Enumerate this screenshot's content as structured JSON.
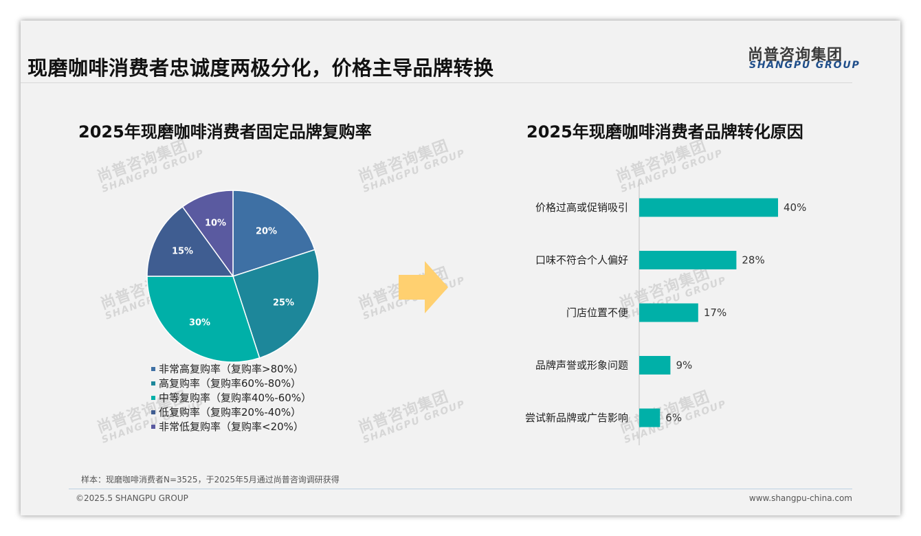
{
  "page": {
    "title": "现磨咖啡消费者忠诚度两极分化，价格主导品牌转换",
    "logo_cn": "尚普咨询集团",
    "logo_en": "SHANGPU GROUP",
    "watermark_cn": "尚普咨询集团",
    "watermark_en": "SHANGPU GROUP",
    "note": "样本：现磨咖啡消费者N=3525，于2025年5月通过尚普咨询调研获得",
    "copyright": "©2025.5 SHANGPU GROUP",
    "website": "www.shangpu-china.com"
  },
  "colors": {
    "accent_teal": "#00b0a8",
    "arrow": "#ffd070"
  },
  "chart_data": [
    {
      "type": "pie",
      "title": "2025年现磨咖啡消费者固定品牌复购率",
      "slices": [
        {
          "label": "非常高复购率（复购率>80%）",
          "value": 20,
          "value_label": "20%",
          "color": "#3e70a4"
        },
        {
          "label": "高复购率（复购率60%-80%）",
          "value": 25,
          "value_label": "25%",
          "color": "#1d879a"
        },
        {
          "label": "中等复购率（复购率40%-60%）",
          "value": 30,
          "value_label": "30%",
          "color": "#00b0a8"
        },
        {
          "label": "低复购率（复购率20%-40%）",
          "value": 15,
          "value_label": "15%",
          "color": "#3f5d91"
        },
        {
          "label": "非常低复购率（复购率<20%）",
          "value": 10,
          "value_label": "10%",
          "color": "#5a5aa0"
        }
      ],
      "legend_position": "bottom"
    },
    {
      "type": "bar",
      "orientation": "horizontal",
      "title": "2025年现磨咖啡消费者品牌转化原因",
      "categories": [
        "价格过高或促销吸引",
        "口味不符合个人偏好",
        "门店位置不便",
        "品牌声誉或形象问题",
        "尝试新品牌或广告影响"
      ],
      "values": [
        40,
        28,
        17,
        9,
        6
      ],
      "value_labels": [
        "40%",
        "28%",
        "17%",
        "9%",
        "6%"
      ],
      "xlim": [
        0,
        60
      ],
      "grid": false
    }
  ]
}
